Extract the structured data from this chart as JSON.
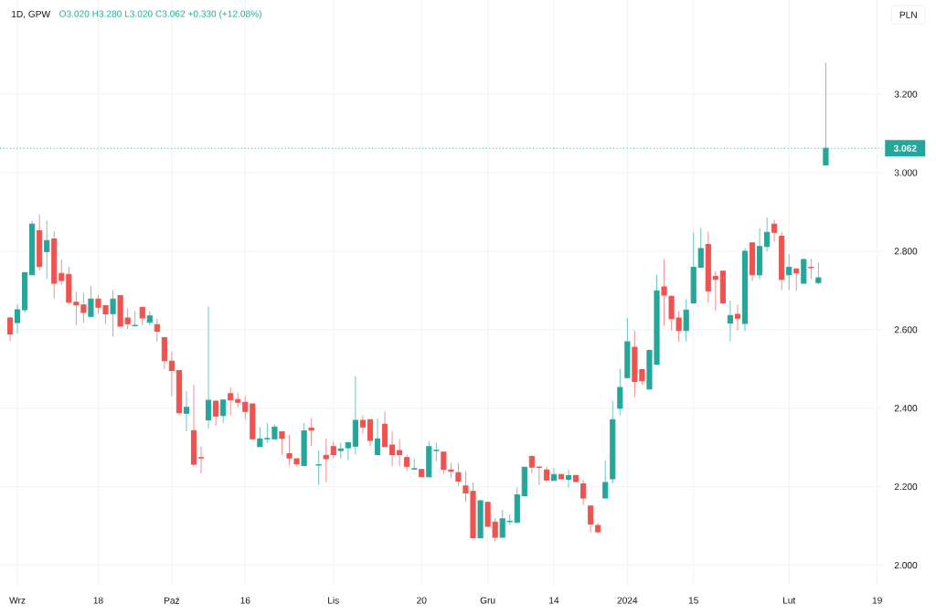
{
  "chart_data": {
    "type": "candlestick",
    "title": "1D, GPW",
    "subtitle": "O3.020 H3.280 L3.020 C3.062 +0.330 (+12.08%)",
    "ylabel": "PLN",
    "categories": [
      null,
      "Wrz",
      null,
      null,
      null,
      null,
      null,
      null,
      null,
      null,
      null,
      null,
      "18",
      null,
      null,
      null,
      null,
      null,
      null,
      null,
      null,
      null,
      "Paź",
      null,
      null,
      null,
      null,
      null,
      null,
      null,
      null,
      null,
      "16",
      null,
      null,
      null,
      null,
      null,
      null,
      null,
      null,
      null,
      null,
      null,
      "Lis",
      null,
      null,
      null,
      null,
      null,
      null,
      null,
      null,
      null,
      null,
      null,
      "20",
      null,
      null,
      null,
      null,
      null,
      null,
      null,
      null,
      "Gru",
      null,
      null,
      null,
      null,
      null,
      null,
      null,
      null,
      "14",
      null,
      null,
      null,
      null,
      null,
      null,
      null,
      null,
      null,
      "2024",
      null,
      null,
      null,
      null,
      null,
      null,
      null,
      null,
      "15",
      null,
      null,
      null,
      null,
      null,
      null,
      null,
      null,
      null,
      null,
      null,
      null,
      "Lut",
      null,
      null,
      null,
      null,
      null,
      null,
      null,
      null,
      null,
      null,
      null,
      "19"
    ],
    "ohlc": [
      [
        2.63,
        2.632,
        2.57,
        2.589
      ],
      [
        2.618,
        2.665,
        2.59,
        2.651
      ],
      [
        2.651,
        2.748,
        2.644,
        2.745
      ],
      [
        2.74,
        2.877,
        2.74,
        2.869
      ],
      [
        2.852,
        2.894,
        2.75,
        2.761
      ],
      [
        2.799,
        2.877,
        2.73,
        2.827
      ],
      [
        2.831,
        2.851,
        2.68,
        2.718
      ],
      [
        2.743,
        2.779,
        2.715,
        2.725
      ],
      [
        2.741,
        2.76,
        2.664,
        2.67
      ],
      [
        2.67,
        2.697,
        2.612,
        2.663
      ],
      [
        2.663,
        2.694,
        2.617,
        2.644
      ],
      [
        2.634,
        2.711,
        2.634,
        2.678
      ],
      [
        2.678,
        2.688,
        2.641,
        2.657
      ],
      [
        2.661,
        2.661,
        2.615,
        2.64
      ],
      [
        2.641,
        2.7,
        2.582,
        2.678
      ],
      [
        2.687,
        2.687,
        2.609,
        2.609
      ],
      [
        2.63,
        2.655,
        2.601,
        2.615
      ],
      [
        2.61,
        2.647,
        2.61,
        2.611
      ],
      [
        2.657,
        2.657,
        2.611,
        2.63
      ],
      [
        2.619,
        2.647,
        2.611,
        2.635
      ],
      [
        2.613,
        2.628,
        2.57,
        2.596
      ],
      [
        2.58,
        2.58,
        2.5,
        2.521
      ],
      [
        2.52,
        2.544,
        2.431,
        2.496
      ],
      [
        2.496,
        2.496,
        2.381,
        2.388
      ],
      [
        2.387,
        2.443,
        2.341,
        2.402
      ],
      [
        2.343,
        2.46,
        2.252,
        2.257
      ],
      [
        2.274,
        2.302,
        2.234,
        2.273
      ],
      [
        2.37,
        2.659,
        2.348,
        2.42
      ],
      [
        2.418,
        2.42,
        2.355,
        2.38
      ],
      [
        2.381,
        2.421,
        2.363,
        2.421
      ],
      [
        2.437,
        2.452,
        2.382,
        2.421
      ],
      [
        2.422,
        2.44,
        2.402,
        2.415
      ],
      [
        2.415,
        2.431,
        2.372,
        2.392
      ],
      [
        2.411,
        2.411,
        2.322,
        2.322
      ],
      [
        2.302,
        2.352,
        2.302,
        2.322
      ],
      [
        2.322,
        2.362,
        2.312,
        2.323
      ],
      [
        2.322,
        2.358,
        2.322,
        2.352
      ],
      [
        2.34,
        2.34,
        2.282,
        2.323
      ],
      [
        2.284,
        2.332,
        2.255,
        2.273
      ],
      [
        2.271,
        2.271,
        2.252,
        2.258
      ],
      [
        2.254,
        2.362,
        2.254,
        2.342
      ],
      [
        2.349,
        2.374,
        2.303,
        2.344
      ],
      [
        2.255,
        2.292,
        2.205,
        2.256
      ],
      [
        2.28,
        2.322,
        2.212,
        2.271
      ],
      [
        2.302,
        2.315,
        2.272,
        2.282
      ],
      [
        2.292,
        2.312,
        2.272,
        2.296
      ],
      [
        2.299,
        2.315,
        2.268,
        2.312
      ],
      [
        2.303,
        2.482,
        2.282,
        2.369
      ],
      [
        2.369,
        2.382,
        2.335,
        2.352
      ],
      [
        2.371,
        2.371,
        2.304,
        2.318
      ],
      [
        2.282,
        2.374,
        2.282,
        2.322
      ],
      [
        2.359,
        2.392,
        2.302,
        2.302
      ],
      [
        2.306,
        2.342,
        2.252,
        2.282
      ],
      [
        2.292,
        2.322,
        2.252,
        2.282
      ],
      [
        2.274,
        2.282,
        2.24,
        2.252
      ],
      [
        2.245,
        2.272,
        2.243,
        2.246
      ],
      [
        2.244,
        2.244,
        2.225,
        2.225
      ],
      [
        2.225,
        2.317,
        2.225,
        2.302
      ],
      [
        2.292,
        2.312,
        2.265,
        2.293
      ],
      [
        2.288,
        2.288,
        2.233,
        2.244
      ],
      [
        2.243,
        2.261,
        2.222,
        2.239
      ],
      [
        2.236,
        2.261,
        2.202,
        2.214
      ],
      [
        2.202,
        2.24,
        2.161,
        2.184
      ],
      [
        2.188,
        2.211,
        2.07,
        2.07
      ],
      [
        2.07,
        2.167,
        2.07,
        2.164
      ],
      [
        2.16,
        2.16,
        2.099,
        2.099
      ],
      [
        2.11,
        2.12,
        2.06,
        2.071
      ],
      [
        2.071,
        2.141,
        2.071,
        2.118
      ],
      [
        2.111,
        2.129,
        2.103,
        2.112
      ],
      [
        2.109,
        2.198,
        2.109,
        2.179
      ],
      [
        2.177,
        2.25,
        2.177,
        2.25
      ],
      [
        2.277,
        2.281,
        2.234,
        2.25
      ],
      [
        2.25,
        2.253,
        2.204,
        2.249
      ],
      [
        2.243,
        2.251,
        2.211,
        2.217
      ],
      [
        2.216,
        2.247,
        2.216,
        2.231
      ],
      [
        2.231,
        2.233,
        2.219,
        2.22
      ],
      [
        2.219,
        2.244,
        2.198,
        2.228
      ],
      [
        2.229,
        2.229,
        2.213,
        2.213
      ],
      [
        2.207,
        2.218,
        2.153,
        2.171
      ],
      [
        2.151,
        2.151,
        2.084,
        2.105
      ],
      [
        2.101,
        2.107,
        2.082,
        2.085
      ],
      [
        2.171,
        2.267,
        2.171,
        2.211
      ],
      [
        2.22,
        2.419,
        2.208,
        2.371
      ],
      [
        2.4,
        2.501,
        2.382,
        2.453
      ],
      [
        2.478,
        2.63,
        2.478,
        2.569
      ],
      [
        2.555,
        2.598,
        2.428,
        2.468
      ],
      [
        2.498,
        2.498,
        2.46,
        2.47
      ],
      [
        2.449,
        2.55,
        2.449,
        2.547
      ],
      [
        2.512,
        2.74,
        2.512,
        2.699
      ],
      [
        2.709,
        2.78,
        2.61,
        2.688
      ],
      [
        2.685,
        2.688,
        2.598,
        2.628
      ],
      [
        2.63,
        2.647,
        2.569,
        2.598
      ],
      [
        2.598,
        2.678,
        2.569,
        2.65
      ],
      [
        2.668,
        2.848,
        2.668,
        2.759
      ],
      [
        2.759,
        2.858,
        2.759,
        2.807
      ],
      [
        2.817,
        2.85,
        2.67,
        2.699
      ],
      [
        2.736,
        2.748,
        2.648,
        2.728
      ],
      [
        2.749,
        2.749,
        2.664,
        2.668
      ],
      [
        2.617,
        2.674,
        2.571,
        2.636
      ],
      [
        2.639,
        2.664,
        2.598,
        2.629
      ],
      [
        2.616,
        2.808,
        2.596,
        2.8
      ],
      [
        2.821,
        2.821,
        2.724,
        2.74
      ],
      [
        2.74,
        2.858,
        2.728,
        2.812
      ],
      [
        2.812,
        2.886,
        2.8,
        2.848
      ],
      [
        2.869,
        2.88,
        2.824,
        2.848
      ],
      [
        2.838,
        2.85,
        2.701,
        2.728
      ],
      [
        2.74,
        2.792,
        2.701,
        2.759
      ],
      [
        2.755,
        2.755,
        2.699,
        2.745
      ],
      [
        2.718,
        2.781,
        2.718,
        2.779
      ],
      [
        2.759,
        2.781,
        2.73,
        2.758
      ],
      [
        2.72,
        2.771,
        2.716,
        2.732
      ],
      [
        3.02,
        3.28,
        3.02,
        3.062
      ],
      null,
      null,
      null,
      null,
      null,
      null,
      null
    ],
    "colors": [
      "#ef5350",
      "#26a69a",
      "#26a69a",
      "#26a69a",
      "#ef5350",
      "#26a69a",
      "#ef5350",
      "#ef5350",
      "#ef5350",
      "#ef5350",
      "#ef5350",
      "#26a69a",
      "#ef5350",
      "#ef5350",
      "#26a69a",
      "#ef5350",
      "#ef5350",
      "#26a69a",
      "#ef5350",
      "#26a69a",
      "#ef5350",
      "#ef5350",
      "#ef5350",
      "#ef5350",
      "#26a69a",
      "#ef5350",
      "#ef5350",
      "#26a69a",
      "#ef5350",
      "#26a69a",
      "#ef5350",
      "#ef5350",
      "#ef5350",
      "#ef5350",
      "#26a69a",
      "#26a69a",
      "#26a69a",
      "#ef5350",
      "#ef5350",
      "#ef5350",
      "#26a69a",
      "#ef5350",
      "#26a69a",
      "#ef5350",
      "#ef5350",
      "#26a69a",
      "#26a69a",
      "#26a69a",
      "#ef5350",
      "#ef5350",
      "#26a69a",
      "#ef5350",
      "#ef5350",
      "#ef5350",
      "#ef5350",
      "#26a69a",
      "#ef5350",
      "#26a69a",
      "#26a69a",
      "#ef5350",
      "#ef5350",
      "#ef5350",
      "#ef5350",
      "#ef5350",
      "#26a69a",
      "#ef5350",
      "#ef5350",
      "#26a69a",
      "#26a69a",
      "#26a69a",
      "#26a69a",
      "#ef5350",
      "#ef5350",
      "#ef5350",
      "#26a69a",
      "#ef5350",
      "#26a69a",
      "#ef5350",
      "#ef5350",
      "#ef5350",
      "#ef5350",
      "#26a69a",
      "#26a69a",
      "#26a69a",
      "#26a69a",
      "#ef5350",
      "#ef5350",
      "#26a69a",
      "#26a69a",
      "#ef5350",
      "#ef5350",
      "#ef5350",
      "#26a69a",
      "#26a69a",
      "#26a69a",
      "#ef5350",
      "#ef5350",
      "#ef5350",
      "#26a69a",
      "#ef5350",
      "#26a69a",
      "#ef5350",
      "#26a69a",
      "#26a69a",
      "#ef5350",
      "#ef5350",
      "#26a69a",
      "#ef5350",
      "#26a69a",
      "#ef5350",
      "#26a69a",
      "#26a69a",
      null,
      null,
      null,
      null,
      null,
      null,
      null
    ],
    "ylim": [
      1.95,
      3.44
    ],
    "yticks": [
      {
        "value": 2.0,
        "label": "2.000"
      },
      {
        "value": 2.2,
        "label": "2.200"
      },
      {
        "value": 2.4,
        "label": "2.400"
      },
      {
        "value": 2.6,
        "label": "2.600"
      },
      {
        "value": 2.8,
        "label": "2.800"
      },
      {
        "value": 3.0,
        "label": "3.000"
      },
      {
        "value": 3.2,
        "label": "3.200"
      }
    ],
    "grid": true,
    "ref_lines": [
      {
        "axis": "y",
        "value": 3.062,
        "label": "3.062",
        "color": "#26a69a",
        "line_style": "dotted"
      }
    ]
  }
}
